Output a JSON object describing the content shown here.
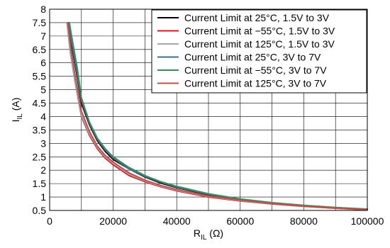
{
  "chart_data": {
    "type": "line",
    "xlabel": {
      "main": "R",
      "sub": "IL",
      "unit": " (Ω)"
    },
    "ylabel": {
      "main": "I",
      "sub": "IL",
      "unit": " (A)"
    },
    "xlim": [
      0,
      100000
    ],
    "ylim": [
      0.5,
      8
    ],
    "xticks": [
      0,
      20000,
      40000,
      60000,
      80000,
      100000
    ],
    "xtick_labels": [
      "0",
      "20000",
      "40000",
      "60000",
      "80000",
      "100000"
    ],
    "yticks": [
      0.5,
      1,
      1.5,
      2,
      2.5,
      3,
      3.5,
      4,
      4.5,
      5,
      5.5,
      6,
      6.5,
      7,
      7.5,
      8
    ],
    "ytick_labels": [
      "0.5",
      "1",
      "1.5",
      "2",
      "2.5",
      "3",
      "3.5",
      "4",
      "4.5",
      "5",
      "5.5",
      "6",
      "6.5",
      "7",
      "7.5",
      "8"
    ],
    "x_minor_gridlines": [
      10000,
      30000,
      50000,
      70000,
      90000
    ],
    "grid": true,
    "legend_position": "top-right",
    "series": [
      {
        "name": "Current Limit at 25°C, 1.5V to 3V",
        "color": "#000000",
        "x": [
          5800,
          7000,
          8500,
          10000,
          12500,
          15000,
          17500,
          20000,
          25000,
          30000,
          35000,
          40000,
          50000,
          60000,
          70000,
          80000,
          90000,
          100000
        ],
        "y": [
          7.5,
          6.6,
          5.6,
          4.5,
          3.7,
          3.1,
          2.7,
          2.4,
          2.05,
          1.75,
          1.52,
          1.35,
          1.08,
          0.9,
          0.77,
          0.67,
          0.6,
          0.54
        ]
      },
      {
        "name": "Current Limit at −55°C, 1.5V to 3V",
        "color": "#e0141e",
        "x": [
          5500,
          6500,
          8000,
          10000,
          12500,
          15000,
          17500,
          20000,
          25000,
          30000,
          35000,
          40000,
          50000,
          60000,
          70000,
          80000,
          90000,
          100000
        ],
        "y": [
          7.5,
          6.4,
          5.3,
          4.0,
          3.3,
          2.8,
          2.45,
          2.2,
          1.8,
          1.57,
          1.38,
          1.23,
          1.0,
          0.85,
          0.74,
          0.65,
          0.58,
          0.52
        ]
      },
      {
        "name": "Current Limit at 125°C, 1.5V to 3V",
        "color": "#a6a6a6",
        "x": [
          5500,
          6500,
          8000,
          10000,
          12500,
          15000,
          17500,
          20000,
          25000,
          30000,
          35000,
          40000,
          50000,
          60000,
          70000,
          80000,
          90000,
          100000
        ],
        "y": [
          7.5,
          6.4,
          5.3,
          4.05,
          3.35,
          2.85,
          2.5,
          2.25,
          1.85,
          1.6,
          1.4,
          1.25,
          1.02,
          0.86,
          0.75,
          0.66,
          0.59,
          0.53
        ]
      },
      {
        "name": "Current Limit at 25°C, 3V to 7V",
        "color": "#3b6e8f",
        "x": [
          6000,
          7000,
          8500,
          10000,
          12500,
          15000,
          17500,
          20000,
          25000,
          30000,
          35000,
          40000,
          50000,
          60000,
          70000,
          80000,
          90000,
          100000
        ],
        "y": [
          7.5,
          6.7,
          5.7,
          4.6,
          3.75,
          3.15,
          2.75,
          2.45,
          2.05,
          1.77,
          1.55,
          1.37,
          1.1,
          0.92,
          0.78,
          0.68,
          0.6,
          0.55
        ]
      },
      {
        "name": "Current Limit at −55°C, 3V to 7V",
        "color": "#3d8b5a",
        "x": [
          6200,
          7200,
          8700,
          10000,
          12500,
          15000,
          17500,
          20000,
          25000,
          30000,
          35000,
          40000,
          50000,
          60000,
          70000,
          80000,
          90000,
          100000
        ],
        "y": [
          7.5,
          6.8,
          5.8,
          4.7,
          3.8,
          3.2,
          2.8,
          2.5,
          2.1,
          1.8,
          1.57,
          1.4,
          1.12,
          0.93,
          0.79,
          0.69,
          0.61,
          0.55
        ]
      },
      {
        "name": "Current Limit at 125°C, 3V to 7V",
        "color": "#c0504d",
        "x": [
          5700,
          6700,
          8200,
          10000,
          12500,
          15000,
          17500,
          20000,
          25000,
          30000,
          35000,
          40000,
          50000,
          60000,
          70000,
          80000,
          90000,
          100000
        ],
        "y": [
          7.5,
          6.5,
          5.4,
          4.2,
          3.45,
          2.9,
          2.55,
          2.3,
          1.9,
          1.63,
          1.43,
          1.28,
          1.04,
          0.88,
          0.76,
          0.66,
          0.59,
          0.53
        ]
      }
    ]
  }
}
